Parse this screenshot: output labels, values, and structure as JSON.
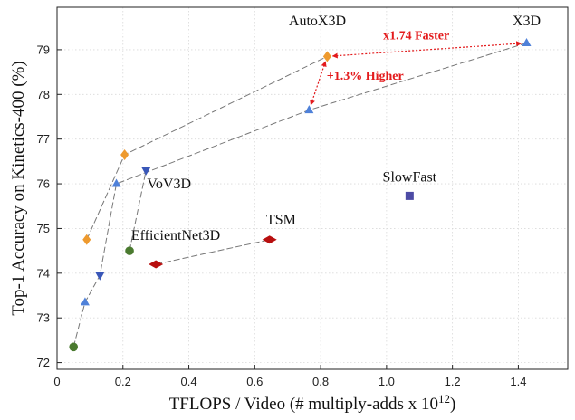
{
  "chart_data": {
    "type": "scatter",
    "xlabel": "TFLOPS / Video (# multiply-adds x 10",
    "xlabel_sup": "12",
    "xlabel_tail": ")",
    "ylabel": "Top-1 Accuracy on Kinetics-400 (%)",
    "xlim": [
      0,
      1.55
    ],
    "ylim": [
      71.85,
      79.95
    ],
    "xticks": [
      0,
      0.2,
      0.4,
      0.6,
      0.8,
      1.0,
      1.2,
      1.4
    ],
    "xtick_labels": [
      "0",
      "0.2",
      "0.4",
      "0.6",
      "0.8",
      "1.0",
      "1.2",
      "1.4"
    ],
    "yticks": [
      72,
      73,
      74,
      75,
      76,
      77,
      78,
      79
    ],
    "ytick_labels": [
      "72",
      "73",
      "74",
      "75",
      "76",
      "77",
      "78",
      "79"
    ],
    "grid": true,
    "colors": {
      "X3D": "#4f81d9",
      "AutoX3D": "#ee9a2e",
      "VoV3D": "#3957b8",
      "TSM": "#b80f0f",
      "EfficientNet3D": "#4a7a2f",
      "SlowFast": "#4d4ba5",
      "connector": "#777777",
      "annotation": "#e31a1c"
    },
    "series": [
      {
        "name": "X3D",
        "marker": "triangle-up",
        "x": [
          0.085,
          0.18,
          0.765,
          1.425
        ],
        "y": [
          73.35,
          76.0,
          77.65,
          79.15
        ]
      },
      {
        "name": "AutoX3D",
        "marker": "diamond",
        "x": [
          0.09,
          0.205,
          0.82
        ],
        "y": [
          74.75,
          76.65,
          78.85
        ]
      },
      {
        "name": "VoV3D",
        "marker": "triangle-down",
        "x": [
          0.13,
          0.27
        ],
        "y": [
          73.95,
          76.3
        ]
      },
      {
        "name": "TSM",
        "marker": "wide-diamond",
        "x": [
          0.3,
          0.645
        ],
        "y": [
          74.2,
          74.75
        ]
      },
      {
        "name": "EfficientNet3D",
        "marker": "circle",
        "x": [
          0.05,
          0.22
        ],
        "y": [
          72.35,
          74.5
        ]
      },
      {
        "name": "SlowFast",
        "marker": "square",
        "x": [
          1.07
        ],
        "y": [
          75.73
        ]
      }
    ],
    "connectors": [
      {
        "x": [
          0.05,
          0.085,
          0.13,
          0.18,
          0.765,
          1.425
        ],
        "y": [
          72.35,
          73.35,
          73.95,
          76.0,
          77.65,
          79.15
        ]
      },
      {
        "x": [
          0.09,
          0.205,
          0.82
        ],
        "y": [
          74.75,
          76.65,
          78.85
        ]
      },
      {
        "x": [
          0.22,
          0.27
        ],
        "y": [
          74.5,
          76.3
        ]
      },
      {
        "x": [
          0.3,
          0.645
        ],
        "y": [
          74.2,
          74.75
        ]
      }
    ],
    "point_labels": [
      {
        "text": "X3D",
        "x": 1.425,
        "y": 79.55
      },
      {
        "text": "AutoX3D",
        "x": 0.79,
        "y": 79.55
      },
      {
        "text": "VoV3D",
        "x": 0.34,
        "y": 75.9
      },
      {
        "text": "TSM",
        "x": 0.68,
        "y": 75.1
      },
      {
        "text": "EfficientNet3D",
        "x": 0.36,
        "y": 74.75
      },
      {
        "text": "SlowFast",
        "x": 1.07,
        "y": 76.05
      }
    ],
    "annotations": [
      {
        "text": "x1.74 Faster",
        "x": 1.09,
        "y": 79.15
      },
      {
        "text": "+1.3% Higher",
        "x": 0.935,
        "y": 78.25
      }
    ],
    "arrows": [
      {
        "from": [
          0.82,
          78.85
        ],
        "to": [
          1.425,
          79.15
        ]
      },
      {
        "from": [
          0.82,
          78.85
        ],
        "to": [
          0.765,
          77.65
        ]
      }
    ]
  }
}
